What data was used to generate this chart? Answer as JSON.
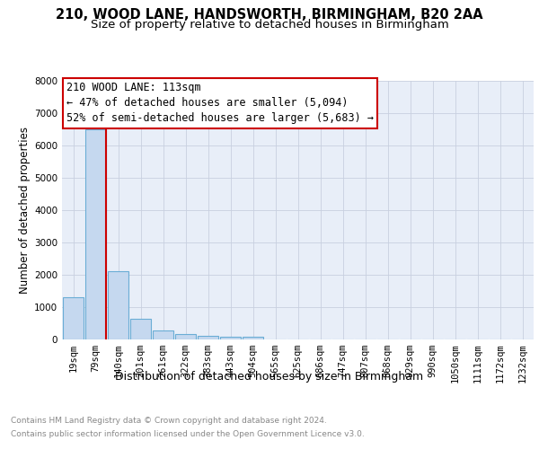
{
  "title1": "210, WOOD LANE, HANDSWORTH, BIRMINGHAM, B20 2AA",
  "title2": "Size of property relative to detached houses in Birmingham",
  "xlabel": "Distribution of detached houses by size in Birmingham",
  "ylabel": "Number of detached properties",
  "bar_labels": [
    "19sqm",
    "79sqm",
    "140sqm",
    "201sqm",
    "261sqm",
    "322sqm",
    "383sqm",
    "443sqm",
    "504sqm",
    "565sqm",
    "625sqm",
    "686sqm",
    "747sqm",
    "807sqm",
    "868sqm",
    "929sqm",
    "990sqm",
    "1050sqm",
    "1111sqm",
    "1172sqm",
    "1232sqm"
  ],
  "bar_values": [
    1300,
    6500,
    2100,
    630,
    270,
    150,
    100,
    70,
    70,
    0,
    0,
    0,
    0,
    0,
    0,
    0,
    0,
    0,
    0,
    0,
    0
  ],
  "bar_color": "#c5d8ef",
  "bar_edge_color": "#6aadd5",
  "property_line_x": 1.47,
  "annotation_line1": "210 WOOD LANE: 113sqm",
  "annotation_line2": "← 47% of detached houses are smaller (5,094)",
  "annotation_line3": "52% of semi-detached houses are larger (5,683) →",
  "annotation_box_color": "#ffffff",
  "annotation_box_edge": "#cc0000",
  "vline_color": "#cc0000",
  "footer1": "Contains HM Land Registry data © Crown copyright and database right 2024.",
  "footer2": "Contains public sector information licensed under the Open Government Licence v3.0.",
  "ylim": [
    0,
    8000
  ],
  "yticks": [
    0,
    1000,
    2000,
    3000,
    4000,
    5000,
    6000,
    7000,
    8000
  ],
  "grid_color": "#c8d0e0",
  "bg_color": "#e8eef8",
  "title_fontsize": 10.5,
  "subtitle_fontsize": 9.5,
  "xlabel_fontsize": 9,
  "ylabel_fontsize": 8.5,
  "tick_fontsize": 7.5,
  "footer_fontsize": 6.5,
  "footer_color": "#888888",
  "annot_fontsize": 8.5
}
